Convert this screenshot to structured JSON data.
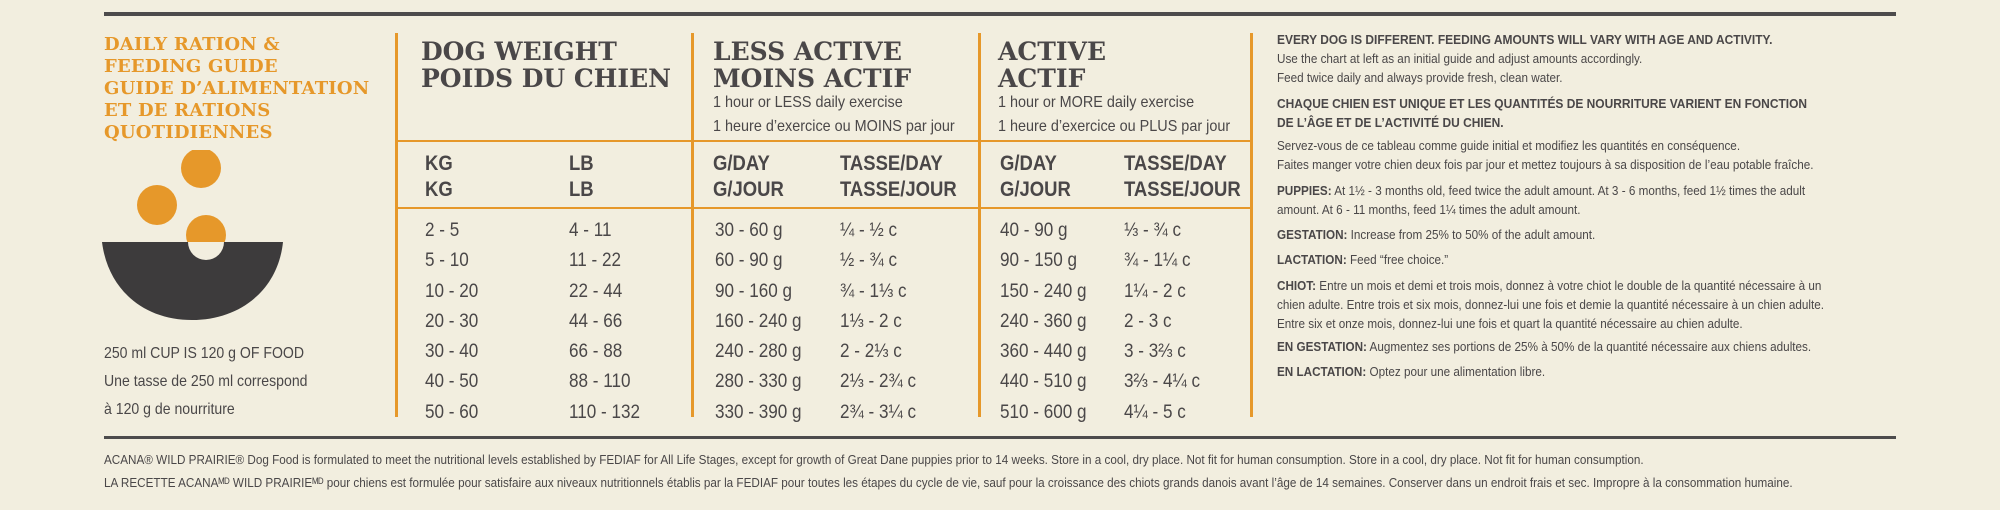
{
  "title_lines": [
    "DAILY RATION &",
    "FEEDING GUIDE",
    "GUIDE D’ALIMENTATION",
    "ET DE RATIONS",
    "QUOTIDIENNES"
  ],
  "colors": {
    "accent": "#e6982a",
    "text": "#4a4748",
    "background": "#f2eedf",
    "bowl": "#3d3b3c"
  },
  "icon": "food-bowl-icon",
  "cup_note": [
    "250 ml CUP IS 120 g OF FOOD",
    "Une tasse de 250 ml correspond",
    "à 120 g de nourriture"
  ],
  "dog_weight": {
    "heading": [
      "DOG WEIGHT",
      "POIDS DU CHIEN"
    ],
    "kg_header": [
      "KG",
      "KG"
    ],
    "lb_header": [
      "LB",
      "LB"
    ],
    "kg": [
      "2 - 5",
      "5 - 10",
      "10 - 20",
      "20 - 30",
      "30 - 40",
      "40 - 50",
      "50 - 60"
    ],
    "lb": [
      "4 - 11",
      "11 - 22",
      "22 - 44",
      "44 - 66",
      "66 - 88",
      "88 - 110",
      "110 - 132"
    ]
  },
  "less_active": {
    "heading": [
      "LESS ACTIVE",
      "MOINS ACTIF"
    ],
    "sub": [
      "1 hour or LESS daily exercise",
      "1 heure d’exercice ou MOINS par jour"
    ],
    "g_header": [
      "G/DAY",
      "G/JOUR"
    ],
    "cup_header": [
      "TASSE/DAY",
      "TASSE/JOUR"
    ],
    "grams": [
      "30 - 60 g",
      "60 - 90 g",
      "90 - 160 g",
      "160 - 240 g",
      "240 - 280 g",
      "280 - 330 g",
      "330 - 390 g"
    ],
    "cups": [
      "¼ - ½ c",
      "½ - ¾ c",
      "¾ - 1⅓ c",
      "1⅓ - 2 c",
      "2 - 2⅓ c",
      "2⅓ - 2¾ c",
      "2¾ - 3¼ c"
    ]
  },
  "active": {
    "heading": [
      "ACTIVE",
      "ACTIF"
    ],
    "sub": [
      "1 hour or MORE daily exercise",
      "1 heure d’exercice ou PLUS par jour"
    ],
    "g_header": [
      "G/DAY",
      "G/JOUR"
    ],
    "cup_header": [
      "TASSE/DAY",
      "TASSE/JOUR"
    ],
    "grams": [
      "40 - 90 g",
      "90 - 150 g",
      "150 - 240 g",
      "240 - 360 g",
      "360 - 440 g",
      "440 - 510 g",
      "510 - 600 g"
    ],
    "cups": [
      "⅓ - ¾ c",
      "¾ - 1¼ c",
      "1¼ - 2 c",
      "2 - 3 c",
      "3 - 3⅔ c",
      "3⅔ - 4¼ c",
      "4¼ - 5 c"
    ]
  },
  "notes": {
    "en_heading": "EVERY DOG IS DIFFERENT. FEEDING AMOUNTS WILL VARY WITH AGE AND ACTIVITY.",
    "en_lines": [
      "Use the chart at left as an initial guide and adjust amounts accordingly.",
      "Feed twice daily and always provide fresh, clean water."
    ],
    "fr_heading": [
      "CHAQUE CHIEN EST UNIQUE ET LES QUANTITÉS DE NOURRITURE VARIENT EN FONCTION",
      "DE L’ÂGE ET DE L’ACTIVITÉ DU CHIEN."
    ],
    "fr_lines": [
      "Servez-vous de ce tableau comme guide initial et modifiez les quantités en conséquence.",
      "Faites manger votre chien deux fois par jour et mettez toujours à sa disposition de l’eau potable fraîche."
    ],
    "puppies_label": "PUPPIES:",
    "puppies_lines": [
      " At 1½ - 3 months old, feed twice the adult amount. At 3 - 6 months, feed 1½ times the adult",
      "amount. At  6 - 11 months, feed 1¼ times the adult amount."
    ],
    "gestation_label": "GESTATION:",
    "gestation_text": " Increase from 25% to 50% of the adult amount.",
    "lactation_label": "LACTATION:",
    "lactation_text": " Feed “free choice.”",
    "chiot_label": "CHIOT:",
    "chiot_lines": [
      " Entre un mois et demi et trois mois, donnez à votre chiot le double de la quantité nécessaire à un",
      "chien adulte. Entre trois et six mois, donnez-lui une fois et demie la quantité nécessaire à un chien adulte.",
      "Entre six et onze mois, donnez-lui une fois et quart la quantité nécessaire au chien adulte."
    ],
    "en_gestation_label": "EN GESTATION:",
    "en_gestation_text": " Augmentez ses portions de 25% à 50% de la quantité nécessaire aux chiens adultes.",
    "en_lactation_label": "EN LACTATION:",
    "en_lactation_text": " Optez pour une alimentation libre."
  },
  "footer": [
    "ACANA® WILD PRAIRIE® Dog Food is formulated to meet the nutritional levels established by FEDIAF for All Life Stages, except for growth of Great Dane puppies prior to 14 weeks.  Store in a cool, dry place. Not fit for human consumption. Store in a cool, dry place. Not fit for human consumption.",
    "LA RECETTE ACANAᴹᴰ WILD PRAIRIEᴹᴰ pour chiens est formulée pour satisfaire aux niveaux nutritionnels établis par la FEDIAF pour toutes les étapes du cycle de vie, sauf pour la croissance des chiots grands danois avant l’âge de 14 semaines. Conserver dans un endroit frais et sec. Impropre à la consommation humaine."
  ]
}
